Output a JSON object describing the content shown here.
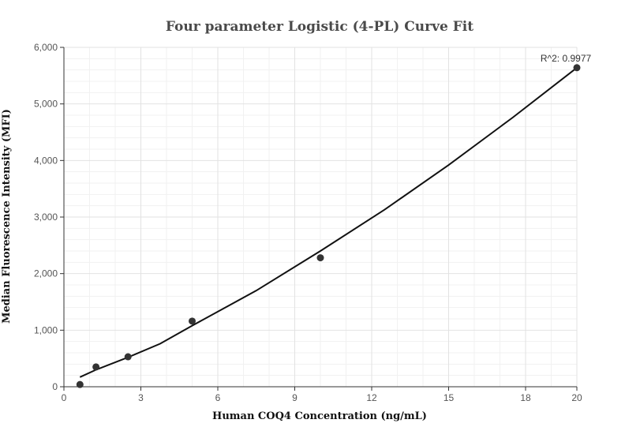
{
  "chart_data": {
    "type": "scatter",
    "title": "Four parameter Logistic (4-PL) Curve Fit",
    "xlabel": "Human COQ4 Concentration  (ng/mL)",
    "ylabel": "Median Fluorescence Intensity (MFI)",
    "xlim": [
      0,
      20
    ],
    "ylim": [
      0,
      6000
    ],
    "x_ticks": [
      0,
      3,
      6,
      9,
      12,
      15,
      18,
      20
    ],
    "x_tick_labels": [
      "0",
      "3",
      "6",
      "9",
      "12",
      "15",
      "18",
      "20"
    ],
    "y_ticks": [
      0,
      1000,
      2000,
      3000,
      4000,
      5000,
      6000
    ],
    "y_tick_labels": [
      "0",
      "1,000",
      "2,000",
      "3,000",
      "4,000",
      "5,000",
      "6,000"
    ],
    "grid": true,
    "points": {
      "x": [
        0.625,
        1.25,
        2.5,
        5,
        10,
        20
      ],
      "y": [
        40,
        350,
        530,
        1160,
        2280,
        5640
      ]
    },
    "fit_curve": {
      "x": [
        0.625,
        1.25,
        2.5,
        3.75,
        5,
        7.5,
        10,
        12.5,
        15,
        17.5,
        20
      ],
      "y": [
        170,
        300,
        520,
        760,
        1080,
        1700,
        2400,
        3130,
        3920,
        4760,
        5640
      ]
    },
    "annotation": "R^2: 0.9977"
  }
}
